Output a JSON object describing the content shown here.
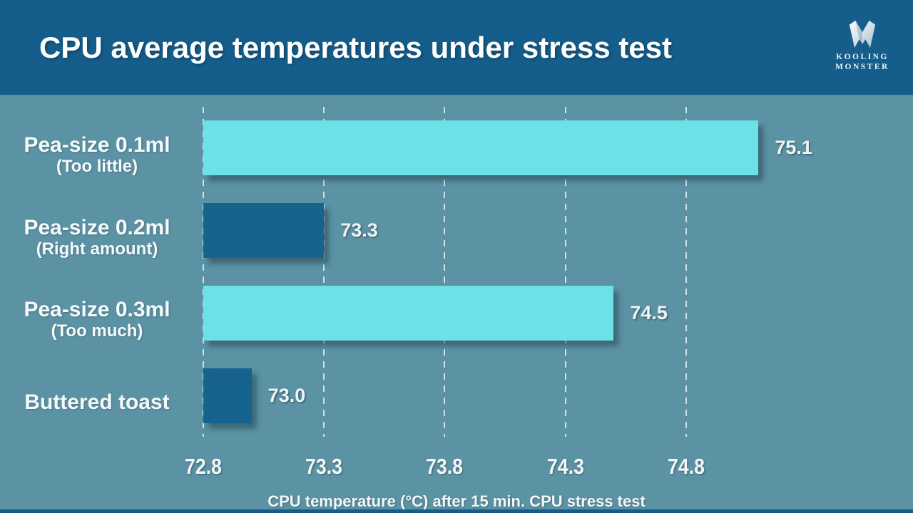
{
  "header": {
    "title": "CPU average temperatures under stress test",
    "logo": {
      "line1": "KOOLING",
      "line2": "MONSTER"
    }
  },
  "chart_data": {
    "type": "bar",
    "orientation": "horizontal",
    "title": "CPU average temperatures under stress test",
    "categories": [
      "Pea-size 0.1ml",
      "Pea-size 0.2ml",
      "Pea-size 0.3ml",
      "Buttered toast"
    ],
    "category_notes": [
      "(Too little)",
      "(Right amount)",
      "(Too much)",
      ""
    ],
    "values": [
      75.1,
      73.3,
      74.5,
      73.0
    ],
    "value_labels": [
      "75.1",
      "73.3",
      "74.5",
      "73.0"
    ],
    "bar_colors": [
      "#6AE2E7",
      "#17638F",
      "#6AE2E7",
      "#17638F"
    ],
    "xlabel": "CPU temperature (°C) after 15 min. CPU stress test",
    "x_ticks": [
      {
        "value": 72.8,
        "label": "72.8"
      },
      {
        "value": 73.3,
        "label": "73.3"
      },
      {
        "value": 73.8,
        "label": "73.8"
      },
      {
        "value": 74.3,
        "label": "74.3"
      },
      {
        "value": 74.8,
        "label": "74.8"
      }
    ],
    "xlim": [
      72.8,
      75.74
    ],
    "grid": "vertical-dashed-white",
    "legend": "none"
  },
  "colors": {
    "header_bg": "#155E8C",
    "canvas_bg": "#5B93A4",
    "bar_cyan": "#6AE2E7",
    "bar_blue": "#17638F",
    "gridline": "#E9F1F4",
    "text": "#FFFFFF"
  }
}
